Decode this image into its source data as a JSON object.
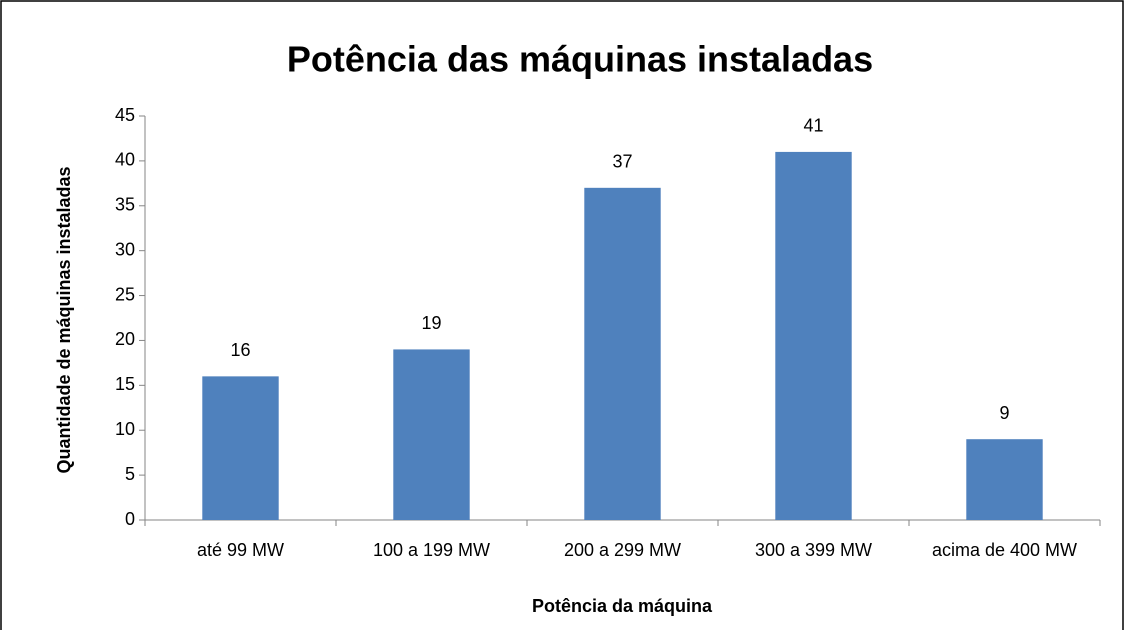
{
  "chart_data": {
    "type": "bar",
    "title": "Potência das máquinas instaladas",
    "x_label": "Potência da máquina",
    "y_label": "Quantidade de máquinas instaladas",
    "categories": [
      "até 99 MW",
      "100 a 199 MW",
      "200 a 299 MW",
      "300 a 399 MW",
      "acima de 400 MW"
    ],
    "values": [
      16,
      19,
      37,
      41,
      9
    ],
    "color": "#4f81bd",
    "ylim": [
      0,
      45
    ],
    "yticks": [
      0,
      5,
      10,
      15,
      20,
      25,
      30,
      35,
      40,
      45
    ],
    "grid": false
  }
}
